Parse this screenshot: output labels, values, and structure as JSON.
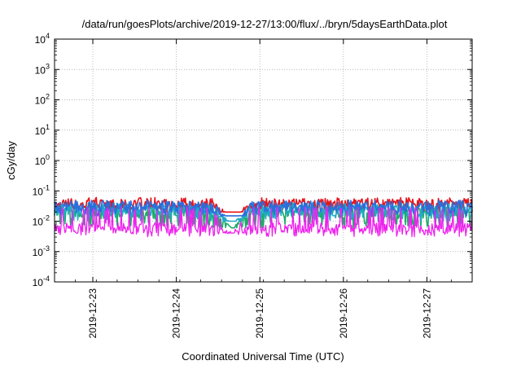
{
  "chart_data": {
    "type": "line",
    "title": "/data/run/goesPlots/archive/2019-12-27/13:00/flux/../bryn/5daysEarthData.plot",
    "xlabel": "Coordinated Universal Time (UTC)",
    "ylabel": "cGy/day",
    "yscale": "log",
    "ylim": [
      0.0001,
      10000
    ],
    "yticks": [
      {
        "base": "10",
        "exp": "-4",
        "value": 0.0001
      },
      {
        "base": "10",
        "exp": "-3",
        "value": 0.001
      },
      {
        "base": "10",
        "exp": "-2",
        "value": 0.01
      },
      {
        "base": "10",
        "exp": "-1",
        "value": 0.1
      },
      {
        "base": "10",
        "exp": "0",
        "value": 1
      },
      {
        "base": "10",
        "exp": "1",
        "value": 10
      },
      {
        "base": "10",
        "exp": "2",
        "value": 100
      },
      {
        "base": "10",
        "exp": "3",
        "value": 1000
      },
      {
        "base": "10",
        "exp": "4",
        "value": 10000
      }
    ],
    "xlim": [
      "2019-12-22 13:00",
      "2019-12-27 13:00"
    ],
    "xticks": [
      "2019-12-23",
      "2019-12-24",
      "2019-12-25",
      "2019-12-26",
      "2019-12-27"
    ],
    "grid": true,
    "legend": "none",
    "series": [
      {
        "color": "#e8141c",
        "approx_range": [
          0.02,
          0.06
        ],
        "median": 0.035,
        "dip": {
          "x": "2019-12-24 16:00",
          "value": 0.012
        }
      },
      {
        "color": "#1faa6a",
        "approx_range": [
          0.006,
          0.03
        ],
        "median": 0.018,
        "dip": {
          "x": "2019-12-24 16:00",
          "value": 0.006
        }
      },
      {
        "color": "#1faac8",
        "approx_range": [
          0.01,
          0.04
        ],
        "median": 0.022,
        "dip": {
          "x": "2019-12-24 16:00",
          "value": 0.008
        }
      },
      {
        "color": "#2a6fdc",
        "approx_range": [
          0.015,
          0.05
        ],
        "median": 0.03,
        "dip": {
          "x": "2019-12-24 16:00",
          "value": 0.009
        }
      },
      {
        "color": "#ee22ee",
        "approx_range": [
          0.003,
          0.03
        ],
        "median": 0.006,
        "dip": {
          "x": "2019-12-24 16:00",
          "value": 0.004
        }
      }
    ]
  }
}
